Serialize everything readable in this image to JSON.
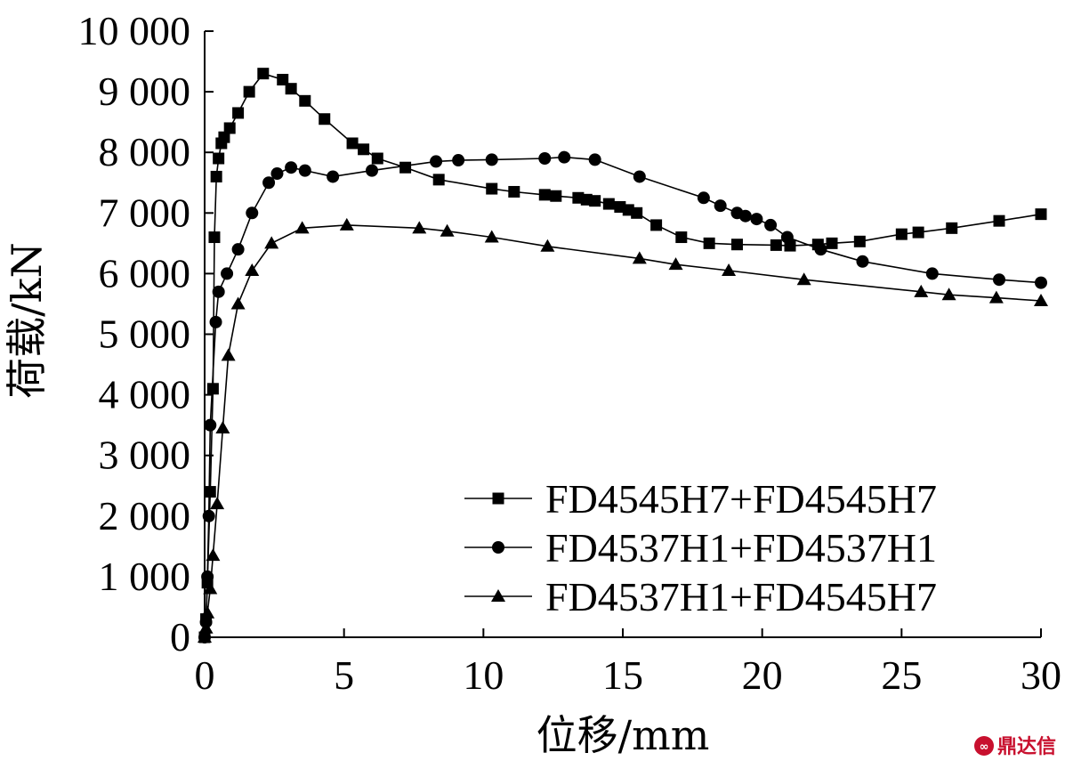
{
  "chart_data": {
    "type": "line",
    "xlabel": "位移/mm",
    "ylabel": "荷载/kN",
    "xlim": [
      0,
      30
    ],
    "ylim": [
      0,
      10000
    ],
    "x_ticks": [
      0,
      5,
      10,
      15,
      20,
      25,
      30
    ],
    "y_ticks": [
      0,
      1000,
      2000,
      3000,
      4000,
      5000,
      6000,
      7000,
      8000,
      9000,
      10000
    ],
    "x_tick_labels": [
      "0",
      "5",
      "10",
      "15",
      "20",
      "25",
      "30"
    ],
    "y_tick_labels": [
      "0",
      "1 000",
      "2 000",
      "3 000",
      "4 000",
      "5 000",
      "6 000",
      "7 000",
      "8 000",
      "9 000",
      "10 000"
    ],
    "grid": false,
    "legend_position": "bottom-right",
    "series": [
      {
        "name": "FD4545H7+FD4545H7",
        "marker": "square",
        "points": [
          [
            0.0,
            0
          ],
          [
            0.05,
            300
          ],
          [
            0.1,
            900
          ],
          [
            0.2,
            2400
          ],
          [
            0.3,
            4100
          ],
          [
            0.35,
            6600
          ],
          [
            0.42,
            7600
          ],
          [
            0.5,
            7900
          ],
          [
            0.6,
            8150
          ],
          [
            0.7,
            8250
          ],
          [
            0.9,
            8400
          ],
          [
            1.2,
            8650
          ],
          [
            1.6,
            9000
          ],
          [
            2.1,
            9300
          ],
          [
            2.8,
            9200
          ],
          [
            3.1,
            9050
          ],
          [
            3.6,
            8850
          ],
          [
            4.3,
            8550
          ],
          [
            5.3,
            8150
          ],
          [
            5.7,
            8050
          ],
          [
            6.2,
            7900
          ],
          [
            7.2,
            7750
          ],
          [
            8.4,
            7550
          ],
          [
            10.3,
            7400
          ],
          [
            11.1,
            7350
          ],
          [
            12.2,
            7300
          ],
          [
            12.6,
            7280
          ],
          [
            13.4,
            7250
          ],
          [
            13.7,
            7220
          ],
          [
            14.0,
            7200
          ],
          [
            14.5,
            7150
          ],
          [
            14.9,
            7100
          ],
          [
            15.2,
            7050
          ],
          [
            15.5,
            7000
          ],
          [
            16.2,
            6800
          ],
          [
            17.1,
            6600
          ],
          [
            18.1,
            6500
          ],
          [
            19.1,
            6480
          ],
          [
            20.5,
            6470
          ],
          [
            21.0,
            6460
          ],
          [
            22.0,
            6480
          ],
          [
            22.5,
            6500
          ],
          [
            23.5,
            6530
          ],
          [
            25.0,
            6650
          ],
          [
            25.6,
            6680
          ],
          [
            26.8,
            6750
          ],
          [
            28.5,
            6870
          ],
          [
            30.0,
            6980
          ]
        ]
      },
      {
        "name": "FD4537H1+FD4537H1",
        "marker": "circle",
        "points": [
          [
            0.0,
            0
          ],
          [
            0.05,
            250
          ],
          [
            0.1,
            1000
          ],
          [
            0.15,
            2000
          ],
          [
            0.2,
            3500
          ],
          [
            0.4,
            5200
          ],
          [
            0.5,
            5700
          ],
          [
            0.8,
            6000
          ],
          [
            1.2,
            6400
          ],
          [
            1.7,
            7000
          ],
          [
            2.3,
            7500
          ],
          [
            2.6,
            7650
          ],
          [
            3.1,
            7750
          ],
          [
            3.6,
            7700
          ],
          [
            4.6,
            7600
          ],
          [
            6.0,
            7700
          ],
          [
            8.3,
            7850
          ],
          [
            9.1,
            7870
          ],
          [
            10.3,
            7880
          ],
          [
            12.2,
            7900
          ],
          [
            12.9,
            7920
          ],
          [
            14.0,
            7880
          ],
          [
            15.6,
            7600
          ],
          [
            17.9,
            7250
          ],
          [
            18.5,
            7120
          ],
          [
            19.1,
            7000
          ],
          [
            19.4,
            6950
          ],
          [
            19.8,
            6900
          ],
          [
            20.3,
            6800
          ],
          [
            20.9,
            6600
          ],
          [
            22.1,
            6400
          ],
          [
            23.6,
            6200
          ],
          [
            26.1,
            6000
          ],
          [
            28.5,
            5900
          ],
          [
            30.0,
            5850
          ]
        ]
      },
      {
        "name": "FD4537H1+FD4545H7",
        "marker": "triangle",
        "points": [
          [
            0.0,
            0
          ],
          [
            0.05,
            150
          ],
          [
            0.1,
            400
          ],
          [
            0.2,
            800
          ],
          [
            0.3,
            1350
          ],
          [
            0.45,
            2200
          ],
          [
            0.65,
            3450
          ],
          [
            0.85,
            4650
          ],
          [
            1.2,
            5500
          ],
          [
            1.7,
            6050
          ],
          [
            2.4,
            6500
          ],
          [
            3.5,
            6750
          ],
          [
            5.1,
            6800
          ],
          [
            7.7,
            6750
          ],
          [
            8.7,
            6700
          ],
          [
            10.3,
            6600
          ],
          [
            12.3,
            6450
          ],
          [
            15.6,
            6250
          ],
          [
            16.9,
            6150
          ],
          [
            18.8,
            6050
          ],
          [
            21.5,
            5900
          ],
          [
            25.7,
            5700
          ],
          [
            26.7,
            5650
          ],
          [
            28.4,
            5600
          ],
          [
            30.0,
            5550
          ]
        ]
      }
    ]
  },
  "watermark": {
    "logo_text": "鼎达信"
  }
}
